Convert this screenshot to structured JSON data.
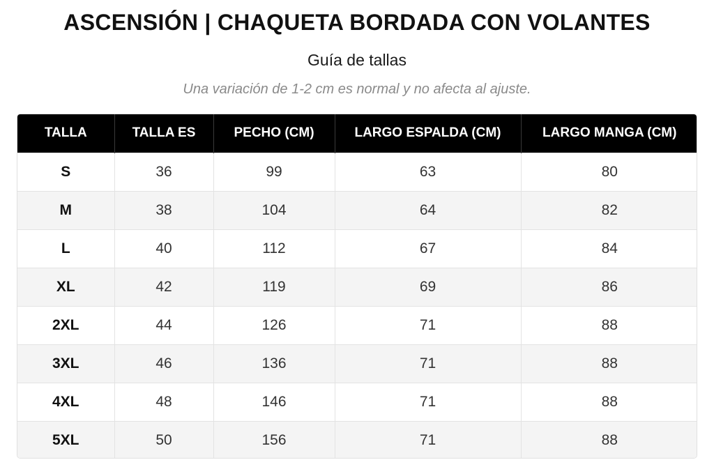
{
  "header": {
    "title": "ASCENSIÓN | CHAQUETA BORDADA CON VOLANTES",
    "subtitle": "Guía de tallas",
    "note": "Una variación de 1-2 cm es normal y no afecta al ajuste."
  },
  "table": {
    "columns": [
      "TALLA",
      "TALLA ES",
      "PECHO (CM)",
      "LARGO ESPALDA (CM)",
      "LARGO MANGA (CM)"
    ],
    "rows": [
      [
        "S",
        "36",
        "99",
        "63",
        "80"
      ],
      [
        "M",
        "38",
        "104",
        "64",
        "82"
      ],
      [
        "L",
        "40",
        "112",
        "67",
        "84"
      ],
      [
        "XL",
        "42",
        "119",
        "69",
        "86"
      ],
      [
        "2XL",
        "44",
        "126",
        "71",
        "88"
      ],
      [
        "3XL",
        "46",
        "136",
        "71",
        "88"
      ],
      [
        "4XL",
        "48",
        "146",
        "71",
        "88"
      ],
      [
        "5XL",
        "50",
        "156",
        "71",
        "88"
      ]
    ]
  },
  "colors": {
    "header_bg": "#000000",
    "header_text": "#ffffff",
    "row_alt_bg": "#f4f4f4",
    "note_text": "#8a8a8a"
  }
}
